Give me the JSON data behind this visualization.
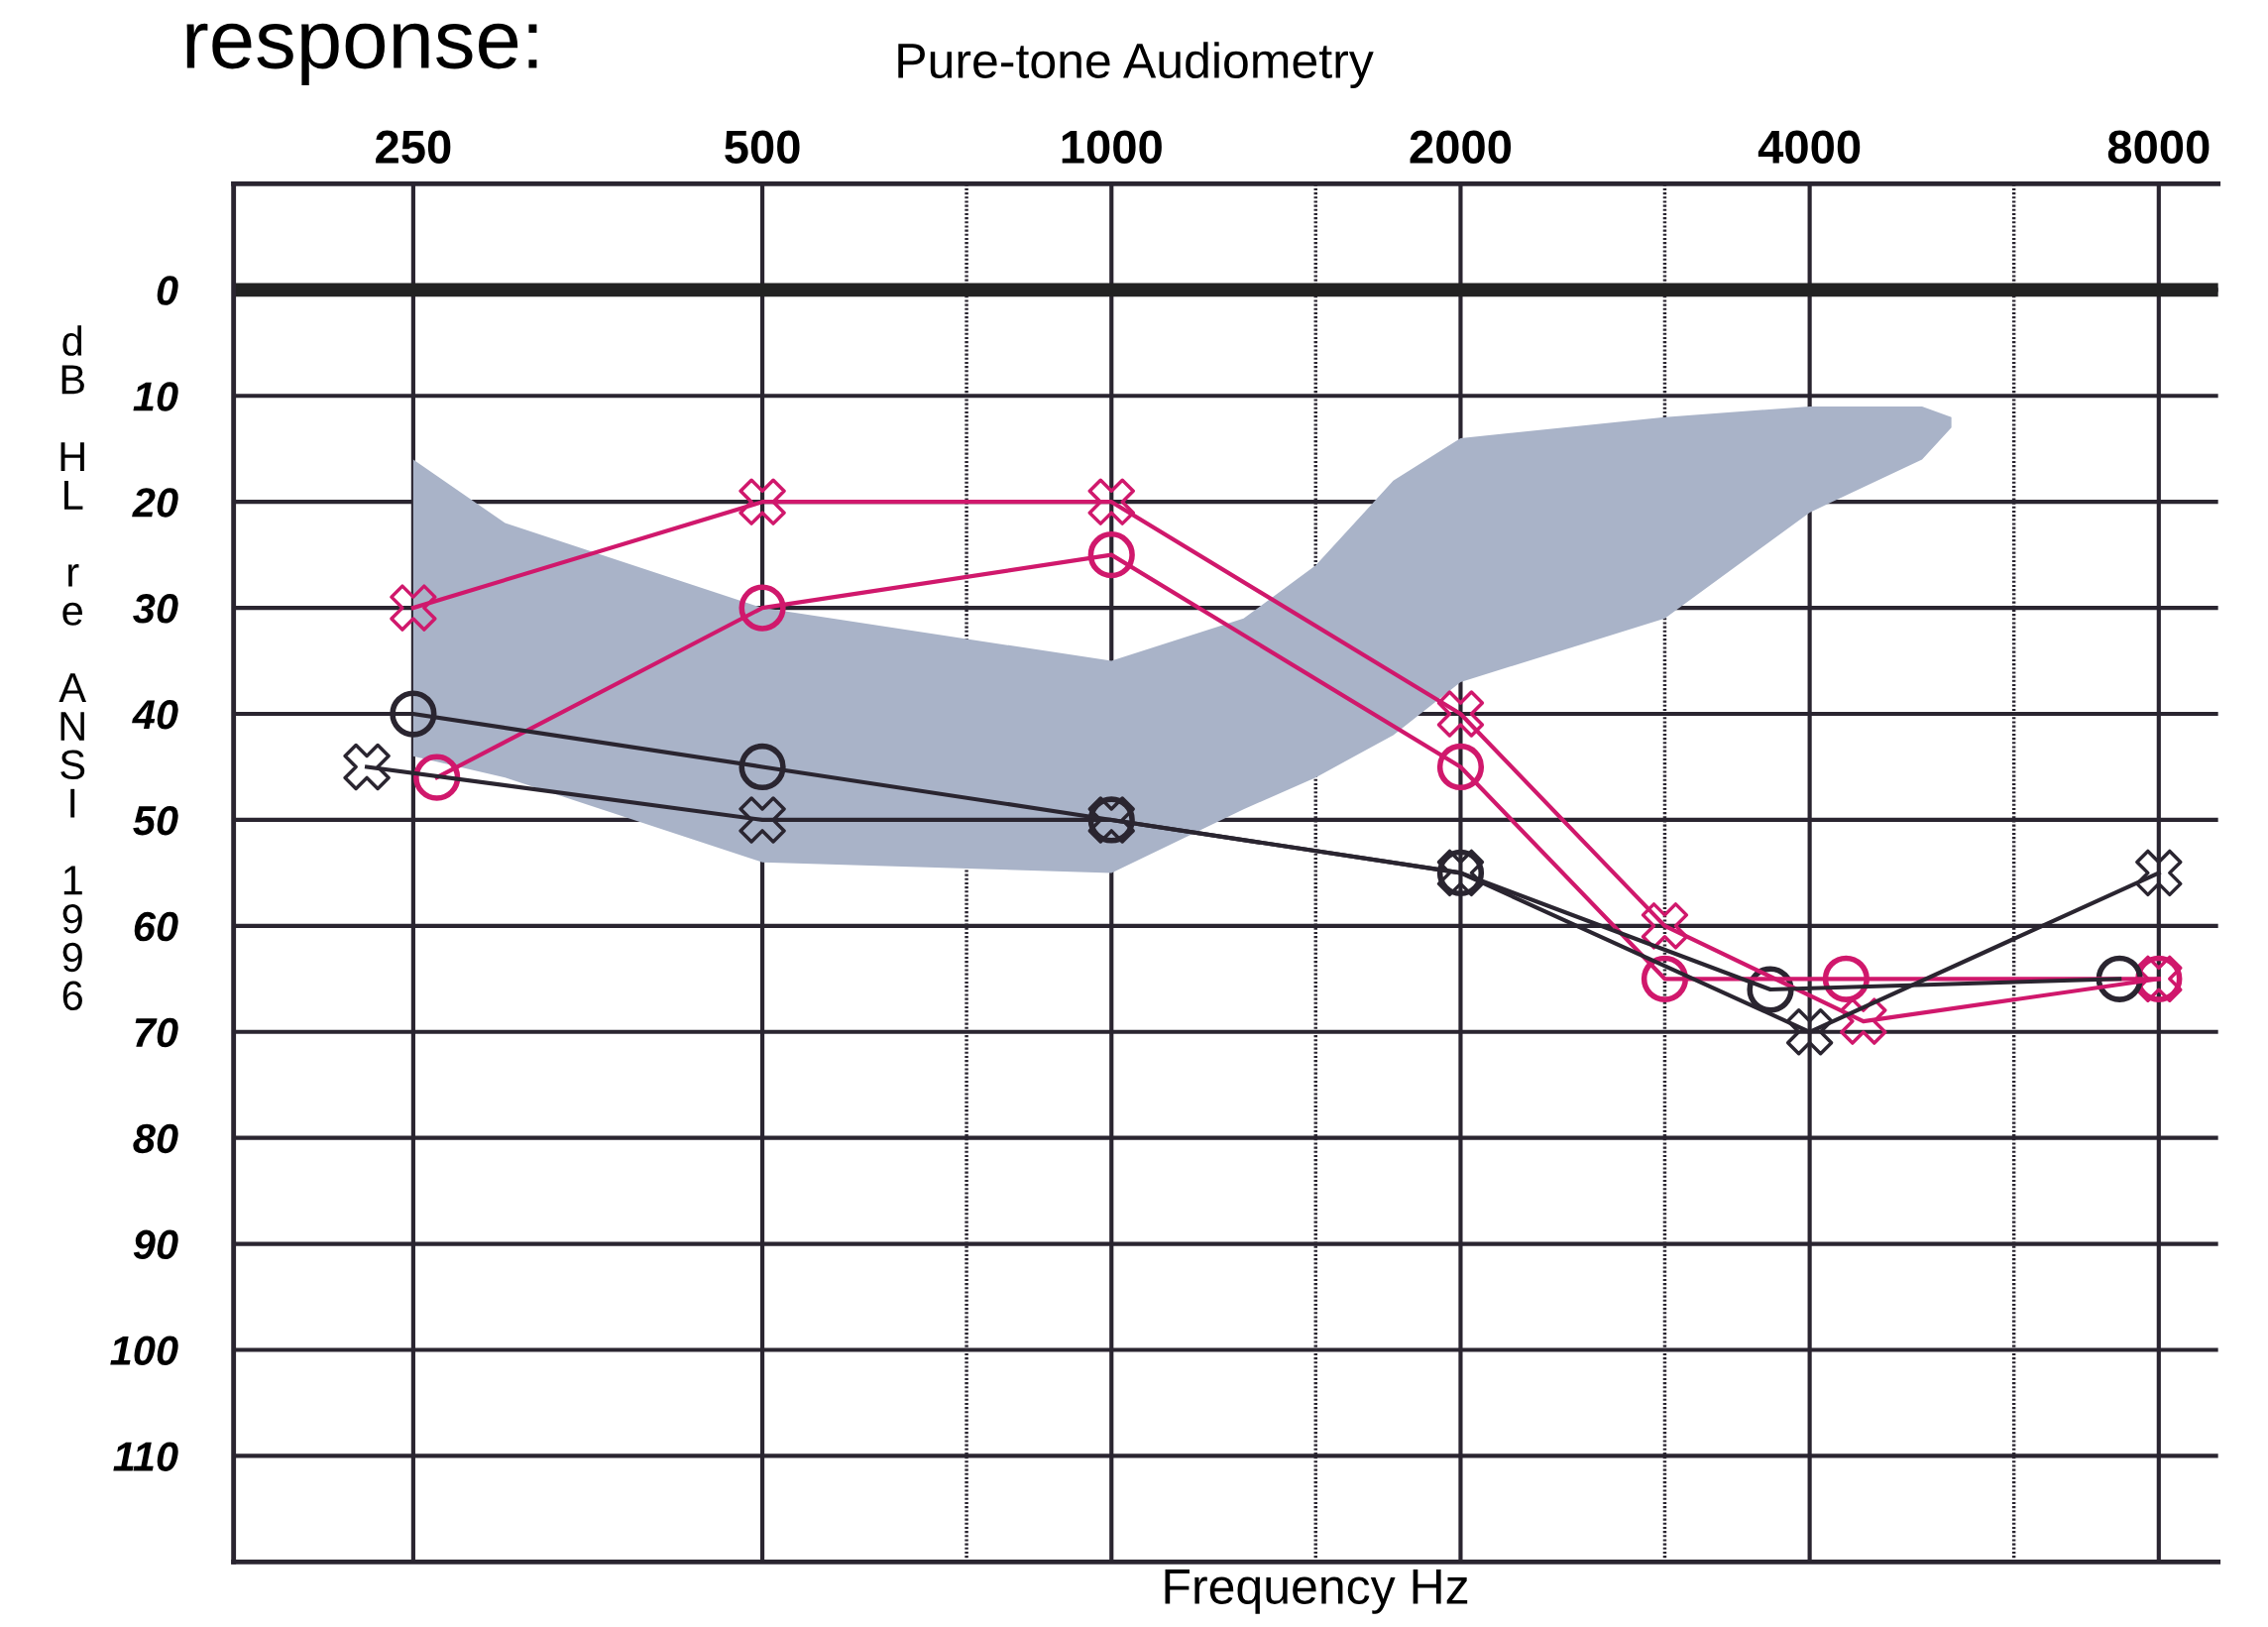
{
  "chart_data": {
    "type": "line",
    "title": "Pure-tone Audiometry",
    "xlabel": "Frequency Hz",
    "ylabel": "dB HL re ANSI 1996",
    "annotations": [
      "response:"
    ],
    "log": "x",
    "xlim": [
      175,
      9000
    ],
    "xticks": [
      250,
      500,
      {
        "value": 750,
        "label": null
      },
      1000,
      {
        "value": 1500,
        "label": null
      },
      2000,
      {
        "value": 3000,
        "label": null
      },
      4000,
      {
        "value": 6000,
        "label": null
      },
      8000
    ],
    "ylim": [
      120,
      -10
    ],
    "yticks": [
      0,
      10,
      20,
      30,
      40,
      50,
      60,
      70,
      80,
      90,
      100,
      110
    ],
    "grid": true,
    "ref_lines": [
      {
        "axis": "y",
        "value": 0,
        "color": "#222222"
      }
    ],
    "series": [
      {
        "color": "#a9b3c8",
        "marker": "none",
        "x": [
          250,
          300,
          500,
          1000,
          1300,
          1500,
          1750,
          2000,
          3000,
          4000,
          5000,
          5300
        ],
        "values": [
          null,
          null,
          null,
          null,
          null,
          null,
          null,
          null,
          null,
          null,
          null,
          null
        ],
        "upper": [
          16,
          22,
          30,
          35,
          31,
          26,
          18,
          14,
          12,
          11,
          11,
          12
        ],
        "lower": [
          44,
          46,
          54,
          55,
          49,
          46,
          42,
          37,
          31,
          21,
          16,
          13
        ]
      },
      {
        "color": "#d0186c",
        "marker": "cross",
        "x": [
          250,
          500,
          1000,
          2000,
          3000,
          4450,
          8000
        ],
        "values": [
          30,
          20,
          20,
          40,
          60,
          69,
          65
        ]
      },
      {
        "color": "#d0186c",
        "marker": "circle",
        "x": [
          262,
          500,
          1000,
          2000,
          3000,
          4300,
          8000
        ],
        "values": [
          46,
          30,
          25,
          45,
          65,
          65,
          65
        ]
      },
      {
        "color": "#2a2530",
        "marker": "cross",
        "x": [
          228,
          500,
          1000,
          2000,
          4000,
          8000
        ],
        "values": [
          45,
          50,
          50,
          55,
          70,
          55
        ]
      },
      {
        "color": "#2a2530",
        "marker": "circle",
        "x": [
          250,
          500,
          1000,
          2000,
          3700,
          7400
        ],
        "values": [
          40,
          45,
          50,
          55,
          66,
          65
        ]
      }
    ]
  }
}
